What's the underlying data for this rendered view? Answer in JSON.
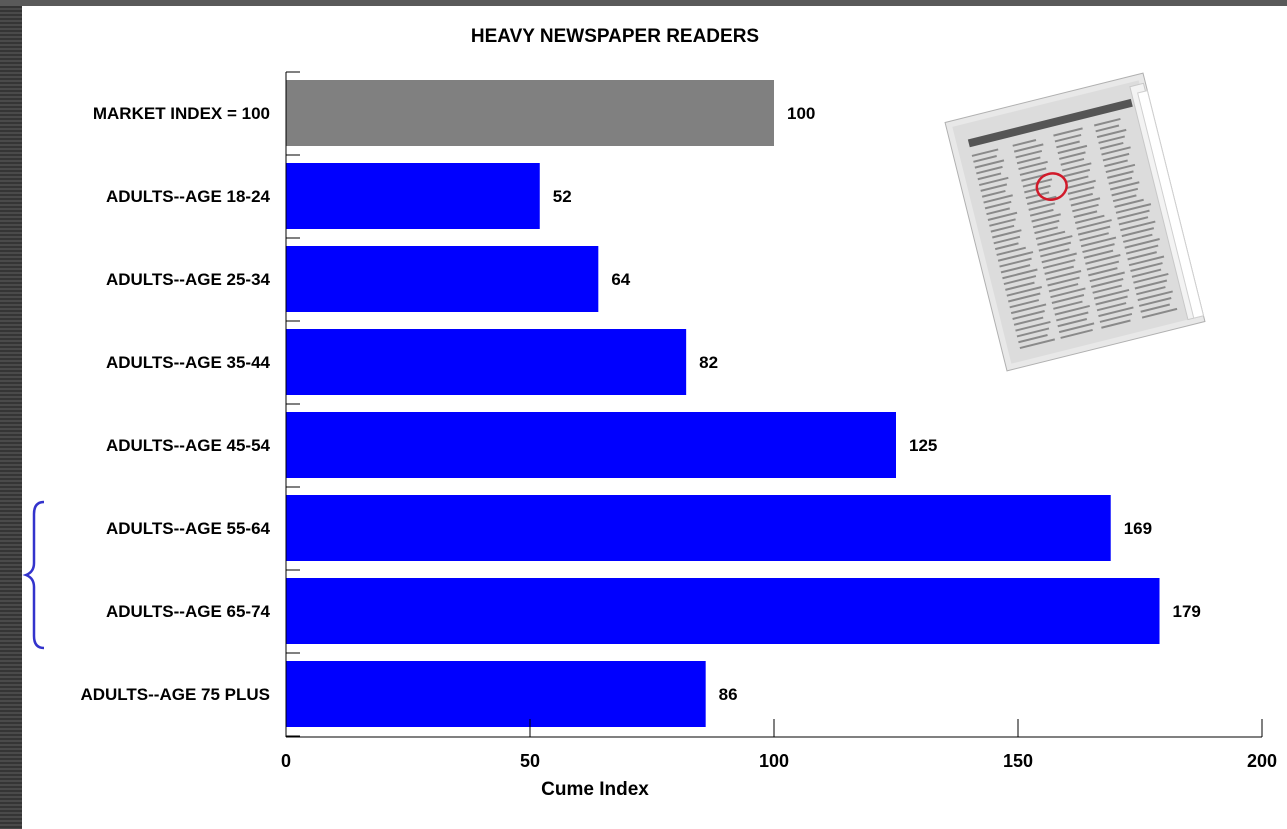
{
  "chart_data": {
    "type": "bar",
    "orientation": "horizontal",
    "title": "HEAVY NEWSPAPER READERS",
    "xlabel": "Cume Index",
    "ylabel": "",
    "xlim": [
      0,
      200
    ],
    "xticks": [
      "0",
      "50",
      "100",
      "150",
      "200"
    ],
    "categories": [
      "MARKET INDEX = 100",
      "ADULTS--AGE 18-24",
      "ADULTS--AGE 25-34",
      "ADULTS--AGE 35-44",
      "ADULTS--AGE 45-54",
      "ADULTS--AGE 55-64",
      "ADULTS--AGE 65-74",
      "ADULTS--AGE 75 PLUS"
    ],
    "values": [
      100,
      52,
      64,
      82,
      125,
      169,
      179,
      86
    ],
    "value_labels": [
      "100",
      "52",
      "64",
      "82",
      "125",
      "169",
      "179",
      "86"
    ],
    "bar_colors": [
      "#808080",
      "#0000ff",
      "#0000ff",
      "#0000ff",
      "#0000ff",
      "#0000ff",
      "#0000ff",
      "#0000ff"
    ],
    "grid": false,
    "legend": "none",
    "bracket_groups": [
      "ADULTS--AGE 55-64",
      "ADULTS--AGE 65-74"
    ],
    "bracket_color": "#3333cc",
    "image": "newspaper-icon"
  }
}
